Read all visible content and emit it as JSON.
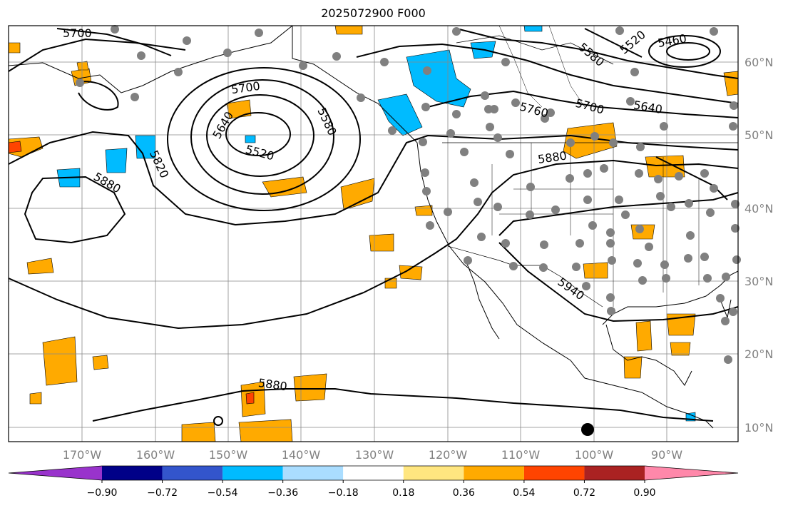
{
  "title": "2025072900 F000",
  "map": {
    "lon_ticks": [
      "170°W",
      "160°W",
      "150°W",
      "140°W",
      "130°W",
      "120°W",
      "110°W",
      "100°W",
      "90°W"
    ],
    "lat_ticks": [
      "60°N",
      "50°N",
      "40°N",
      "30°N",
      "20°N",
      "10°N"
    ],
    "contour_labels": [
      "5700",
      "5700",
      "5640",
      "5580",
      "5520",
      "5820",
      "5880",
      "5880",
      "5880",
      "5580",
      "5760",
      "5700",
      "5640",
      "5520",
      "5460",
      "5940"
    ]
  },
  "colorbar": {
    "ticks": [
      "−0.90",
      "−0.72",
      "−0.54",
      "−0.36",
      "−0.18",
      "0.18",
      "0.36",
      "0.54",
      "0.72",
      "0.90"
    ],
    "colors": [
      "#9933cc",
      "#000088",
      "#3355cc",
      "#00bbff",
      "#aaddff",
      "#ffffff",
      "#ffe680",
      "#ffaa00",
      "#ff4400",
      "#aa2222",
      "#ff88aa"
    ]
  }
}
